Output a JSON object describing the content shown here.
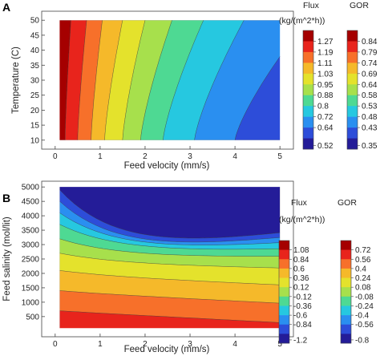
{
  "chart_data": [
    {
      "type": "heatmap",
      "panel": "A",
      "title": "",
      "xlabel": "Feed velocity (mm/s)",
      "ylabel": "Temperature (C)",
      "xlim": [
        -0.3,
        5.3
      ],
      "ylim": [
        7,
        53
      ],
      "x_ticks": [
        0,
        1,
        2,
        3,
        4,
        5
      ],
      "y_ticks": [
        10,
        15,
        20,
        25,
        30,
        35,
        40,
        45,
        50
      ],
      "filled_region": {
        "x": [
          0.1,
          5
        ],
        "y": [
          10,
          50
        ]
      },
      "field_variable": "Flux",
      "contour_breaks_x_at_T10": [
        0.22,
        0.5,
        0.8,
        1.1,
        1.5,
        1.9,
        2.4,
        3.1,
        4.0
      ],
      "contour_breaks_x_at_T50": [
        0.35,
        0.7,
        1.05,
        1.5,
        2.0,
        2.6,
        3.3,
        4.2,
        5.6
      ],
      "colorbars": [
        {
          "title": "Flux",
          "unit": "(kg/(m^2*h))",
          "ticks": [
            "1.27",
            "1.19",
            "1.11",
            "1.03",
            "0.95",
            "0.88",
            "0.8",
            "0.72",
            "0.64",
            "0.52"
          ],
          "colors": [
            "#a50000",
            "#e8241c",
            "#f7702a",
            "#f5b92a",
            "#e4e22c",
            "#a7e04c",
            "#4ed993",
            "#26c8e0",
            "#2a8ff0",
            "#2d4dd9",
            "#241c98"
          ]
        },
        {
          "title": "GOR",
          "unit": "",
          "ticks": [
            "0.84",
            "0.79",
            "0.74",
            "0.69",
            "0.64",
            "0.58",
            "0.53",
            "0.48",
            "0.43",
            "0.35"
          ],
          "colors": [
            "#a50000",
            "#e8241c",
            "#f7702a",
            "#f5b92a",
            "#e4e22c",
            "#a7e04c",
            "#4ed993",
            "#26c8e0",
            "#2a8ff0",
            "#2d4dd9",
            "#241c98"
          ]
        }
      ]
    },
    {
      "type": "heatmap",
      "panel": "B",
      "title": "",
      "xlabel": "Feed velocity (mm/s)",
      "ylabel": "Feed salinity (mol/lit)",
      "xlim": [
        -0.3,
        5.3
      ],
      "ylim": [
        -200,
        5200
      ],
      "x_ticks": [
        0,
        1,
        2,
        3,
        4,
        5
      ],
      "y_ticks": [
        500,
        1000,
        1500,
        2000,
        2500,
        3000,
        3500,
        4000,
        4500,
        5000
      ],
      "filled_region": {
        "x": [
          0.1,
          5
        ],
        "y": [
          100,
          5000
        ]
      },
      "field_variable": "Flux",
      "contour_break_salinity_at_v0": [
        4900,
        4500,
        4100,
        3700,
        3200,
        2700,
        2100,
        1400,
        700
      ],
      "contour_break_salinity_at_v5": [
        4900,
        4500,
        4000,
        3500,
        3000,
        2400,
        1700,
        1000,
        300
      ],
      "contour_velocity_factor": [
        0.04,
        0.12,
        0.28,
        0.45,
        0.6,
        0.75,
        0.85,
        0.92,
        0.96
      ],
      "colorbars": [
        {
          "title": "Flux",
          "unit": "(kg/(m^2*h))",
          "ticks": [
            "1.08",
            "0.84",
            "0.6",
            "0.36",
            "0.12",
            "-0.12",
            "-0.36",
            "-0.6",
            "-0.84",
            "-1.2"
          ],
          "colors": [
            "#a50000",
            "#e8241c",
            "#f7702a",
            "#f5b92a",
            "#e4e22c",
            "#a7e04c",
            "#4ed993",
            "#26c8e0",
            "#2a8ff0",
            "#2d4dd9",
            "#241c98"
          ]
        },
        {
          "title": "GOR",
          "unit": "",
          "ticks": [
            "0.72",
            "0.56",
            "0.4",
            "0.24",
            "0.08",
            "-0.08",
            "-0.24",
            "-0.4",
            "-0.56",
            "-0.8"
          ],
          "colors": [
            "#a50000",
            "#e8241c",
            "#f7702a",
            "#f5b92a",
            "#e4e22c",
            "#a7e04c",
            "#4ed993",
            "#26c8e0",
            "#2a8ff0",
            "#2d4dd9",
            "#241c98"
          ]
        }
      ]
    }
  ],
  "panel_labels": [
    "A",
    "B"
  ]
}
